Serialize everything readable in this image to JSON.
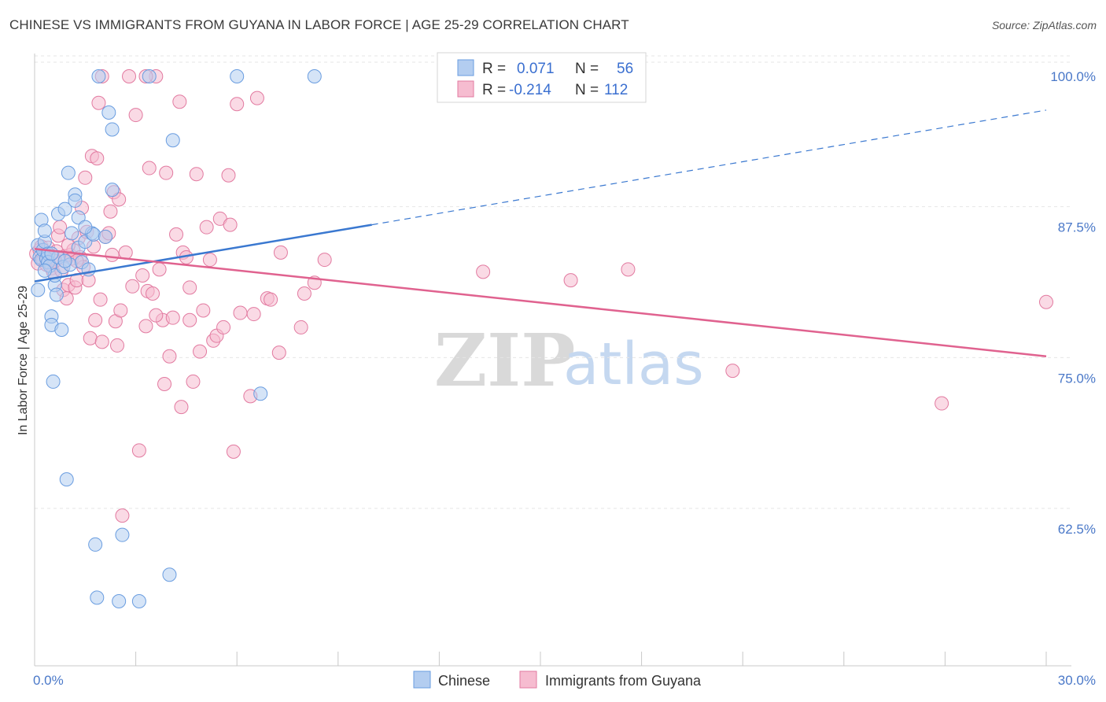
{
  "title": "CHINESE VS IMMIGRANTS FROM GUYANA IN LABOR FORCE | AGE 25-29 CORRELATION CHART",
  "source": "Source: ZipAtlas.com",
  "watermark": {
    "zip": "ZIP",
    "atlas": "atlas"
  },
  "chart_data": {
    "type": "scatter",
    "xlabel": "",
    "ylabel": "In Labor Force | Age 25-29",
    "xlim": [
      0,
      30
    ],
    "ylim": [
      51,
      102
    ],
    "x_tick_labels": {
      "left": "0.0%",
      "right": "30.0%"
    },
    "y_ticks": [
      {
        "value": 100,
        "label": "100.0%"
      },
      {
        "value": 87.5,
        "label": "87.5%"
      },
      {
        "value": 75,
        "label": "75.0%"
      },
      {
        "value": 62.5,
        "label": "62.5%"
      }
    ],
    "legend": [
      {
        "series": "Chinese",
        "r_label": "R =",
        "r_value": "0.071",
        "n_label": "N =",
        "n_value": "56"
      },
      {
        "series": "Immigrants from Guyana",
        "r_label": "R =",
        "r_value": "-0.214",
        "n_label": "N =",
        "n_value": "112"
      }
    ],
    "series": [
      {
        "name": "Chinese",
        "color": "#6a9de0",
        "fill": "#b3cdf0",
        "trend": {
          "x0": 0,
          "y0": 83.0,
          "x1": 10.0,
          "y1": 87.7,
          "dash_x1": 30,
          "dash_y1": 97.2
        },
        "points": [
          [
            0.1,
            86.0
          ],
          [
            0.1,
            82.3
          ],
          [
            0.15,
            85.0
          ],
          [
            0.2,
            84.8
          ],
          [
            0.2,
            88.1
          ],
          [
            0.25,
            85.6
          ],
          [
            0.3,
            86.3
          ],
          [
            0.3,
            87.2
          ],
          [
            0.35,
            84.9
          ],
          [
            0.4,
            85.3
          ],
          [
            0.4,
            84.6
          ],
          [
            0.45,
            84.3
          ],
          [
            0.5,
            80.1
          ],
          [
            0.5,
            79.4
          ],
          [
            0.55,
            74.7
          ],
          [
            0.6,
            82.7
          ],
          [
            0.6,
            83.5
          ],
          [
            0.65,
            81.9
          ],
          [
            0.7,
            85.0
          ],
          [
            0.7,
            88.6
          ],
          [
            0.8,
            79.0
          ],
          [
            0.85,
            84.2
          ],
          [
            0.9,
            89.0
          ],
          [
            0.95,
            66.6
          ],
          [
            1.0,
            92.0
          ],
          [
            1.05,
            84.4
          ],
          [
            1.1,
            87.0
          ],
          [
            1.2,
            90.2
          ],
          [
            1.2,
            89.7
          ],
          [
            1.3,
            88.3
          ],
          [
            1.3,
            85.8
          ],
          [
            1.4,
            84.6
          ],
          [
            1.5,
            86.3
          ],
          [
            1.6,
            84.0
          ],
          [
            1.7,
            87.0
          ],
          [
            1.75,
            86.9
          ],
          [
            1.8,
            61.2
          ],
          [
            1.85,
            56.8
          ],
          [
            1.9,
            100.0
          ],
          [
            2.1,
            86.7
          ],
          [
            2.2,
            97.0
          ],
          [
            2.3,
            95.6
          ],
          [
            2.3,
            90.6
          ],
          [
            2.5,
            56.5
          ],
          [
            2.6,
            62.0
          ],
          [
            3.1,
            56.5
          ],
          [
            3.4,
            100.0
          ],
          [
            4.0,
            58.7
          ],
          [
            4.1,
            94.7
          ],
          [
            6.0,
            100.0
          ],
          [
            6.7,
            73.7
          ],
          [
            8.3,
            100.0
          ],
          [
            0.3,
            83.9
          ],
          [
            0.9,
            84.7
          ],
          [
            1.5,
            87.5
          ],
          [
            0.5,
            85.3
          ]
        ]
      },
      {
        "name": "Immigrants from Guyana",
        "color": "#e27aa0",
        "fill": "#f6bcd0",
        "trend": {
          "x0": 0,
          "y0": 85.7,
          "x1": 30,
          "y1": 76.8
        },
        "points": [
          [
            0.05,
            85.3
          ],
          [
            0.1,
            84.5
          ],
          [
            0.15,
            85.6
          ],
          [
            0.2,
            85.9
          ],
          [
            0.25,
            84.8
          ],
          [
            0.3,
            85.2
          ],
          [
            0.35,
            84.4
          ],
          [
            0.4,
            85.8
          ],
          [
            0.45,
            85.1
          ],
          [
            0.5,
            84.1
          ],
          [
            0.55,
            83.8
          ],
          [
            0.6,
            84.9
          ],
          [
            0.65,
            85.5
          ],
          [
            0.7,
            86.8
          ],
          [
            0.75,
            87.5
          ],
          [
            0.8,
            83.9
          ],
          [
            0.85,
            82.3
          ],
          [
            0.9,
            85.1
          ],
          [
            0.95,
            81.6
          ],
          [
            1.0,
            82.7
          ],
          [
            1.05,
            85.2
          ],
          [
            1.1,
            84.9
          ],
          [
            1.15,
            85.6
          ],
          [
            1.2,
            82.5
          ],
          [
            1.25,
            83.1
          ],
          [
            1.3,
            86.6
          ],
          [
            1.35,
            85.0
          ],
          [
            1.4,
            89.1
          ],
          [
            1.45,
            84.2
          ],
          [
            1.5,
            91.6
          ],
          [
            1.55,
            87.1
          ],
          [
            1.6,
            83.1
          ],
          [
            1.65,
            78.3
          ],
          [
            1.7,
            93.4
          ],
          [
            1.75,
            85.9
          ],
          [
            1.8,
            79.8
          ],
          [
            1.85,
            93.2
          ],
          [
            1.9,
            97.8
          ],
          [
            1.95,
            81.5
          ],
          [
            2.0,
            78.0
          ],
          [
            2.1,
            86.7
          ],
          [
            2.2,
            87.0
          ],
          [
            2.25,
            88.8
          ],
          [
            2.3,
            85.2
          ],
          [
            2.35,
            90.4
          ],
          [
            2.4,
            79.7
          ],
          [
            2.45,
            77.7
          ],
          [
            2.5,
            89.8
          ],
          [
            2.55,
            80.6
          ],
          [
            2.6,
            63.6
          ],
          [
            2.8,
            100.0
          ],
          [
            2.9,
            82.6
          ],
          [
            3.0,
            96.8
          ],
          [
            3.1,
            69.0
          ],
          [
            3.2,
            83.5
          ],
          [
            3.3,
            79.3
          ],
          [
            3.35,
            82.2
          ],
          [
            3.4,
            92.4
          ],
          [
            3.5,
            82.0
          ],
          [
            3.6,
            100.0
          ],
          [
            3.7,
            84.0
          ],
          [
            3.8,
            79.8
          ],
          [
            3.85,
            74.5
          ],
          [
            3.9,
            92.0
          ],
          [
            4.0,
            76.8
          ],
          [
            4.1,
            80.0
          ],
          [
            4.2,
            86.9
          ],
          [
            4.3,
            97.9
          ],
          [
            4.35,
            72.6
          ],
          [
            4.4,
            85.4
          ],
          [
            4.5,
            85.0
          ],
          [
            4.6,
            82.5
          ],
          [
            4.7,
            74.7
          ],
          [
            4.8,
            91.9
          ],
          [
            4.9,
            77.2
          ],
          [
            5.0,
            80.6
          ],
          [
            5.1,
            87.5
          ],
          [
            5.2,
            84.8
          ],
          [
            5.3,
            78.1
          ],
          [
            5.4,
            78.5
          ],
          [
            5.5,
            88.2
          ],
          [
            5.6,
            79.2
          ],
          [
            5.75,
            91.8
          ],
          [
            5.9,
            68.9
          ],
          [
            6.0,
            97.7
          ],
          [
            6.1,
            80.4
          ],
          [
            6.4,
            73.5
          ],
          [
            6.5,
            80.3
          ],
          [
            6.6,
            98.2
          ],
          [
            6.9,
            81.6
          ],
          [
            7.0,
            81.5
          ],
          [
            7.25,
            77.1
          ],
          [
            7.3,
            85.4
          ],
          [
            7.9,
            79.2
          ],
          [
            8.0,
            82.0
          ],
          [
            8.3,
            82.9
          ],
          [
            8.6,
            84.8
          ],
          [
            13.3,
            83.8
          ],
          [
            15.9,
            83.1
          ],
          [
            17.6,
            84.0
          ],
          [
            20.7,
            75.6
          ],
          [
            26.9,
            72.9
          ],
          [
            30.0,
            81.3
          ],
          [
            0.6,
            84.7
          ],
          [
            1.0,
            86.0
          ],
          [
            2.7,
            85.4
          ],
          [
            3.6,
            80.2
          ],
          [
            4.6,
            79.8
          ],
          [
            5.8,
            87.7
          ],
          [
            1.25,
            84.7
          ],
          [
            2.0,
            100.0
          ],
          [
            3.3,
            100.0
          ]
        ]
      }
    ]
  }
}
